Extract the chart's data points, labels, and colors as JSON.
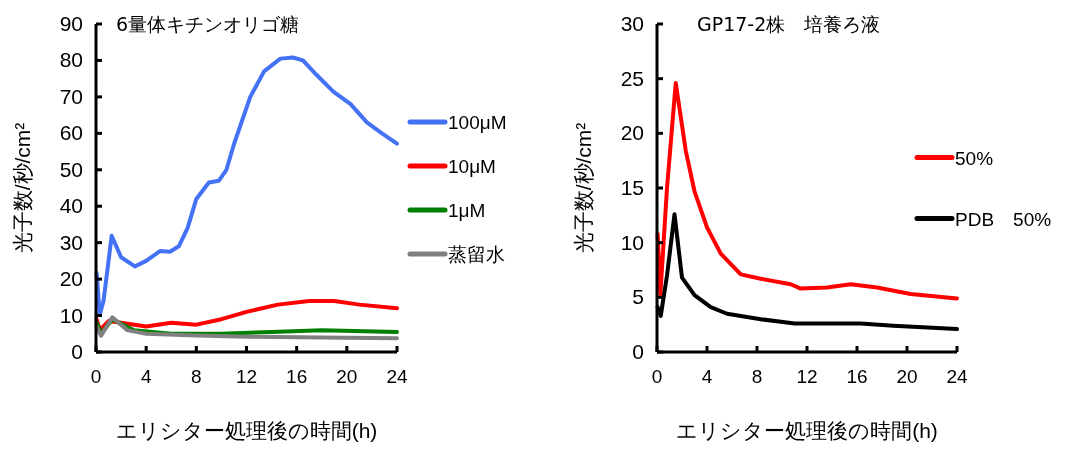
{
  "chart_data": [
    {
      "type": "line",
      "title": "6量体キチンオリゴ糖",
      "xlabel": "エリシター処理後の時間(h)",
      "ylabel": "光子数/秒/cm²",
      "xlim": [
        0,
        24
      ],
      "xticks": [
        0,
        4,
        8,
        12,
        16,
        20,
        24
      ],
      "ylim": [
        0,
        90
      ],
      "yticks": [
        0,
        10,
        20,
        30,
        40,
        50,
        60,
        70,
        80,
        90
      ],
      "legend": "right",
      "series": [
        {
          "name": "100μM",
          "color": "#4472f4",
          "x": [
            0.05,
            0.3,
            0.6,
            1.25,
            2,
            3.1,
            4,
            5.1,
            5.9,
            6.6,
            7.3,
            8.0,
            9.0,
            9.8,
            10.4,
            11,
            12.3,
            13.4,
            14.7,
            15.7,
            16.5,
            17.6,
            18.9,
            20.3,
            21.6,
            22.8,
            24
          ],
          "values": [
            21.7,
            10.2,
            14,
            31.9,
            26,
            23.5,
            25,
            27.7,
            27.5,
            29,
            34,
            42,
            46.5,
            47,
            50,
            57,
            70,
            77,
            80.5,
            80.8,
            80,
            76,
            71.5,
            68,
            63,
            60,
            57.2
          ]
        },
        {
          "name": "10μM",
          "color": "#ff0000",
          "x": [
            0.05,
            0.3,
            1,
            2,
            4,
            6,
            8,
            10,
            12,
            14.5,
            17,
            19,
            21,
            24
          ],
          "values": [
            9,
            6,
            8.5,
            8,
            7,
            8,
            7.5,
            9,
            11,
            13,
            14,
            14,
            13,
            12
          ]
        },
        {
          "name": "1μM",
          "color": "#008000",
          "x": [
            0.05,
            0.4,
            1.3,
            3,
            6,
            10,
            14,
            18,
            24
          ],
          "values": [
            8,
            5,
            9,
            6,
            5,
            5,
            5.5,
            6,
            5.5
          ]
        },
        {
          "name": "蒸留水",
          "color": "#808080",
          "x": [
            0.05,
            0.4,
            1.3,
            2.5,
            4,
            8,
            12,
            18,
            24
          ],
          "values": [
            7,
            4.5,
            9.5,
            6,
            5,
            4.5,
            4.2,
            4,
            3.8
          ]
        }
      ]
    },
    {
      "type": "line",
      "title": "GP17-2株　培養ろ液",
      "xlabel": "エリシター処理後の時間(h)",
      "ylabel": "光子数/秒/cm²",
      "xlim": [
        0,
        24
      ],
      "xticks": [
        0,
        4,
        8,
        12,
        16,
        20,
        24
      ],
      "ylim": [
        0,
        30
      ],
      "yticks": [
        0,
        5,
        10,
        15,
        20,
        25,
        30
      ],
      "legend": "right",
      "series": [
        {
          "name": "50%",
          "color": "#ff0000",
          "x": [
            0.05,
            0.27,
            0.8,
            1.5,
            2.3,
            3,
            4,
            5.1,
            6.7,
            8.3,
            10.7,
            11.5,
            13.6,
            15.5,
            17.6,
            20.3,
            24
          ],
          "values": [
            10.8,
            5.3,
            15,
            24.6,
            18.4,
            14.7,
            11.4,
            9.0,
            7.1,
            6.7,
            6.2,
            5.8,
            5.9,
            6.2,
            5.9,
            5.3,
            4.9
          ]
        },
        {
          "name": "PDB　50%",
          "color": "#000000",
          "x": [
            0.05,
            0.3,
            0.8,
            1.4,
            2,
            3,
            4.3,
            5.6,
            8.3,
            11,
            16.3,
            18.9,
            24
          ],
          "values": [
            4.1,
            3.3,
            7,
            12.6,
            6.8,
            5.2,
            4.1,
            3.5,
            3.0,
            2.6,
            2.6,
            2.4,
            2.1
          ]
        }
      ]
    }
  ]
}
